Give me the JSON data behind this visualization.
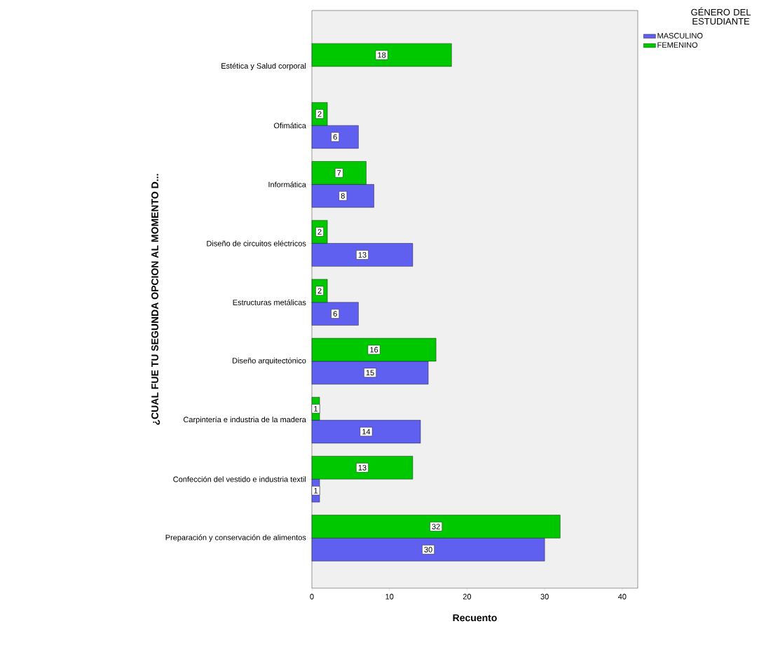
{
  "chart_data": {
    "type": "bar",
    "orientation": "horizontal",
    "xlabel": "Recuento",
    "ylabel": "¿CUAL FUE TU SEGUNDA OPCION AL MOMENTO D...",
    "legend_title": "GÉNERO DEL ESTUDIANTE",
    "categories": [
      "Estética y Salud corporal",
      "Ofimática",
      "Informática",
      "Diseño de circuitos eléctricos",
      "Estructuras metálicas",
      "Diseño arquitectónico",
      "Carpintería e industria de la madera",
      "Confección del vestido e industria textil",
      "Preparación y conservación de alimentos"
    ],
    "series": [
      {
        "name": "MASCULINO",
        "color": "#6060f0",
        "values": [
          null,
          6,
          8,
          13,
          6,
          15,
          14,
          1,
          30
        ]
      },
      {
        "name": "FEMENINO",
        "color": "#00c800",
        "values": [
          18,
          2,
          7,
          2,
          2,
          16,
          1,
          13,
          32
        ]
      }
    ],
    "xlim": [
      0,
      42
    ],
    "xticks": [
      0,
      10,
      20,
      30,
      40
    ],
    "data_labels": true,
    "legend": "top right",
    "grid": false
  }
}
